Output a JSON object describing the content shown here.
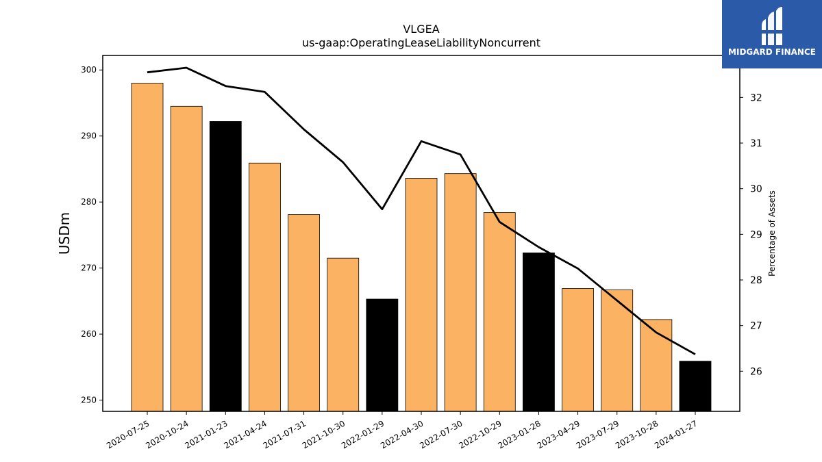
{
  "chart_data": {
    "type": "bar+line",
    "title": "VLGEA",
    "subtitle": "us-gaap:OperatingLeaseLiabilityNoncurrent",
    "ylabel": "USDm",
    "ylabel_right": "Percentage of Assets",
    "categories": [
      "2020-07-25",
      "2020-10-24",
      "2021-01-23",
      "2021-04-24",
      "2021-07-31",
      "2021-10-30",
      "2022-01-29",
      "2022-04-30",
      "2022-07-30",
      "2022-10-29",
      "2023-01-28",
      "2023-04-29",
      "2023-07-29",
      "2023-10-28",
      "2024-01-27"
    ],
    "bar_values": [
      298.0,
      294.5,
      292.2,
      285.9,
      278.1,
      271.5,
      265.3,
      283.6,
      284.3,
      278.4,
      272.3,
      266.9,
      266.7,
      262.2,
      255.9
    ],
    "bar_highlight": [
      false,
      false,
      true,
      false,
      false,
      false,
      true,
      false,
      false,
      false,
      true,
      false,
      false,
      false,
      true
    ],
    "line_values": [
      32.55,
      32.65,
      32.25,
      32.12,
      31.3,
      30.58,
      29.55,
      31.04,
      30.75,
      29.27,
      28.72,
      28.25,
      27.55,
      26.85,
      26.37
    ],
    "ylim_left": [
      248.3,
      302.2
    ],
    "yticks_left": [
      250,
      260,
      270,
      280,
      290,
      300
    ],
    "ylim_right": [
      25.12,
      32.92
    ],
    "yticks_right": [
      26,
      27,
      28,
      29,
      30,
      31,
      32
    ],
    "bar_color": "#fbb262",
    "bar_highlight_color": "#000000",
    "line_color": "#000000",
    "grid": false
  },
  "logo": {
    "text": "MIDGARD FINANCE",
    "background": "#2a5aa8"
  }
}
